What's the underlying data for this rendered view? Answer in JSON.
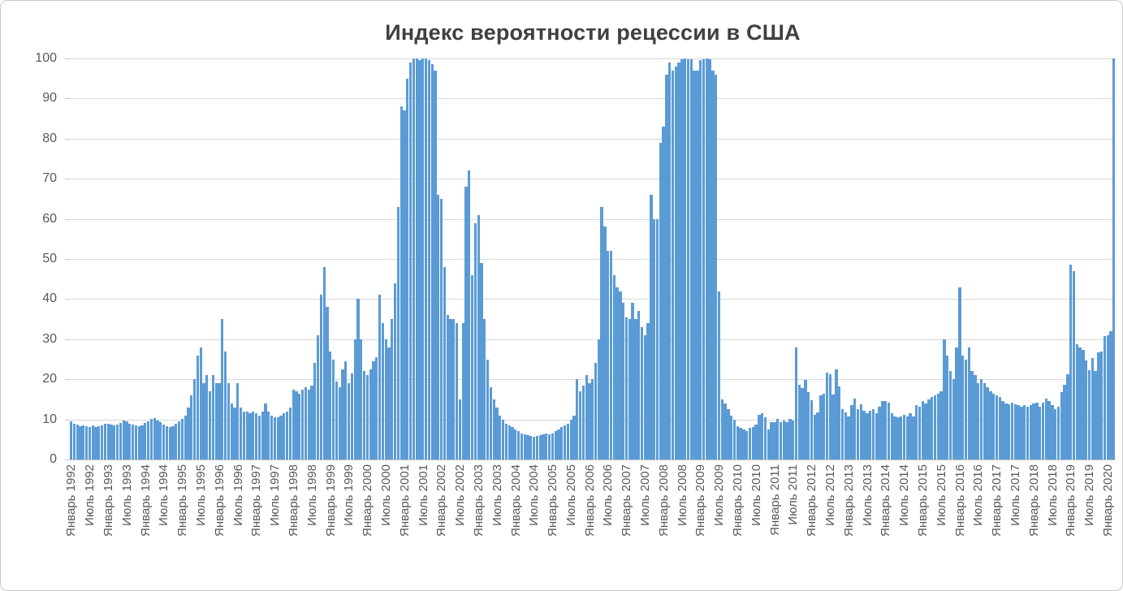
{
  "title": "Индекс вероятности рецессии в США",
  "colors": {
    "bar": "#5b9bd5",
    "title_text": "#404040",
    "tick_text": "#595959",
    "gridline": "#d9d9d9",
    "axis_line": "#bfbfbf",
    "frame_border": "#c9c9c9"
  },
  "chart_data": {
    "type": "bar",
    "title": "Индекс вероятности рецессии в США",
    "xlabel": "",
    "ylabel": "",
    "ylim": [
      0,
      100
    ],
    "grid": true,
    "legend": "none",
    "y_ticks": [
      0,
      10,
      20,
      30,
      40,
      50,
      60,
      70,
      80,
      90,
      100
    ],
    "x_tick_interval": 6,
    "x_tick_labels": [
      "Январь 1992",
      "Июль 1992",
      "Январь 1993",
      "Июль 1993",
      "Январь 1994",
      "Июль 1994",
      "Январь 1995",
      "Июль 1995",
      "Январь 1996",
      "Июль 1996",
      "Январь 1997",
      "Июль 1997",
      "Январь 1998",
      "Июль 1998",
      "Январь 1999",
      "Июль 1999",
      "Январь 2000",
      "Июль 2000",
      "Январь 2001",
      "Июль 2001",
      "Январь 2002",
      "Июль 2002",
      "Январь 2003",
      "Июль 2003",
      "Январь 2004",
      "Июль 2004",
      "Январь 2005",
      "Июль 2005",
      "Январь 2006",
      "Июль 2006",
      "Январь 2007",
      "Июль 2007",
      "Январь 2008",
      "Июль 2008",
      "Январь 2009",
      "Июль 2009",
      "Январь 2010",
      "Июль 2010",
      "Январь 2011",
      "Июль 2011",
      "Январь 2012",
      "Июль 2012",
      "Январь 2013",
      "Июль 2013",
      "Январь 2014",
      "Июль 2014",
      "Январь 2015",
      "Июль 2015",
      "Январь 2016",
      "Июль 2016",
      "Январь 2017",
      "Июль 2017",
      "Январь 2018",
      "Июль 2018",
      "Январь 2019",
      "Июль 2019",
      "Январь 2020"
    ],
    "x_monthly_start": "Январь 1992",
    "values": [
      9.6,
      9.0,
      8.7,
      8.4,
      8.6,
      8.3,
      8.2,
      8.5,
      8.0,
      8.3,
      8.6,
      8.9,
      9.0,
      8.7,
      8.5,
      8.8,
      9.2,
      9.7,
      9.5,
      9.0,
      8.7,
      8.5,
      8.3,
      8.6,
      9.2,
      9.6,
      10.2,
      10.4,
      9.8,
      9.3,
      8.8,
      8.3,
      8.0,
      8.4,
      9.0,
      9.6,
      10.2,
      11.0,
      13.0,
      16.0,
      20.0,
      26.0,
      28.0,
      19.0,
      21.0,
      17.0,
      21.0,
      19.0,
      19.0,
      35.0,
      27.0,
      19.0,
      14.0,
      13.0,
      19.0,
      13.0,
      12.0,
      12.0,
      11.5,
      12.0,
      11.5,
      11.0,
      12.0,
      14.0,
      12.0,
      11.0,
      10.5,
      10.5,
      11.0,
      11.5,
      12.0,
      13.0,
      17.5,
      17.0,
      16.5,
      17.5,
      18.0,
      17.5,
      18.5,
      24.0,
      31.0,
      41.0,
      48.0,
      38.0,
      27.0,
      25.0,
      19.5,
      18.0,
      22.5,
      24.5,
      19.0,
      21.5,
      30.0,
      40.0,
      30.0,
      22.0,
      21.0,
      22.5,
      24.5,
      25.5,
      41.0,
      34.0,
      30.0,
      28.0,
      35.0,
      44.0,
      63.0,
      88.0,
      87.0,
      95.0,
      99.0,
      100.0,
      100.0,
      99.5,
      100.0,
      100.0,
      99.5,
      98.5,
      97.0,
      66.0,
      65.0,
      48.0,
      36.0,
      35.0,
      35.0,
      34.0,
      15.0,
      34.0,
      68.0,
      72.0,
      46.0,
      59.0,
      61.0,
      49.0,
      35.0,
      25.0,
      18.0,
      15.0,
      13.0,
      11.0,
      10.0,
      9.0,
      8.5,
      8.0,
      7.5,
      7.0,
      6.5,
      6.2,
      6.0,
      5.8,
      5.7,
      5.8,
      6.0,
      6.2,
      6.5,
      6.3,
      6.5,
      7.0,
      7.5,
      8.0,
      8.5,
      9.0,
      10.0,
      11.0,
      20.0,
      17.0,
      18.5,
      21.0,
      19.0,
      20.0,
      24.0,
      30.0,
      63.0,
      58.0,
      52.0,
      52.0,
      46.0,
      43.0,
      42.0,
      39.0,
      35.5,
      35.0,
      39.0,
      35.0,
      37.0,
      33.0,
      31.0,
      34.0,
      66.0,
      60.0,
      60.0,
      79.0,
      83.0,
      96.0,
      99.0,
      97.0,
      98.0,
      99.0,
      99.8,
      100.0,
      99.8,
      99.9,
      97.0,
      97.0,
      99.5,
      99.9,
      100.0,
      99.8,
      97.0,
      96.0,
      42.0,
      15.0,
      14.0,
      12.5,
      11.0,
      10.0,
      8.4,
      7.8,
      7.4,
      7.1,
      7.8,
      8.2,
      8.8,
      11.1,
      11.5,
      10.5,
      7.4,
      9.4,
      9.4,
      10.1,
      9.4,
      9.8,
      9.4,
      10.1,
      9.7,
      28.0,
      18.6,
      17.9,
      19.9,
      16.9,
      14.8,
      11.1,
      11.8,
      15.9,
      16.5,
      21.6,
      21.3,
      16.2,
      22.5,
      18.2,
      12.5,
      11.8,
      10.8,
      13.5,
      15.2,
      12.5,
      13.8,
      12.1,
      11.5,
      12.1,
      12.5,
      11.5,
      13.2,
      14.5,
      14.5,
      14.2,
      11.5,
      10.8,
      10.5,
      10.8,
      11.2,
      10.8,
      11.5,
      10.8,
      13.5,
      13.2,
      14.5,
      14.0,
      15.0,
      15.5,
      16.0,
      16.5,
      17.0,
      30.0,
      26.0,
      22.0,
      20.0,
      28.0,
      43.0,
      26.0,
      25.0,
      28.0,
      22.0,
      21.0,
      19.0,
      20.0,
      19.0,
      18.0,
      17.0,
      16.5,
      16.0,
      15.5,
      14.5,
      14.0,
      13.8,
      14.2,
      13.8,
      13.5,
      13.2,
      13.5,
      13.2,
      13.5,
      14.0,
      14.2,
      13.2,
      14.2,
      15.2,
      14.5,
      13.5,
      12.5,
      13.2,
      16.9,
      18.6,
      21.3,
      48.6,
      47.0,
      28.7,
      28.0,
      27.3,
      24.6,
      22.3,
      25.3,
      22.0,
      26.7,
      27.0,
      30.7,
      31.0,
      32.0,
      100.0
    ]
  }
}
